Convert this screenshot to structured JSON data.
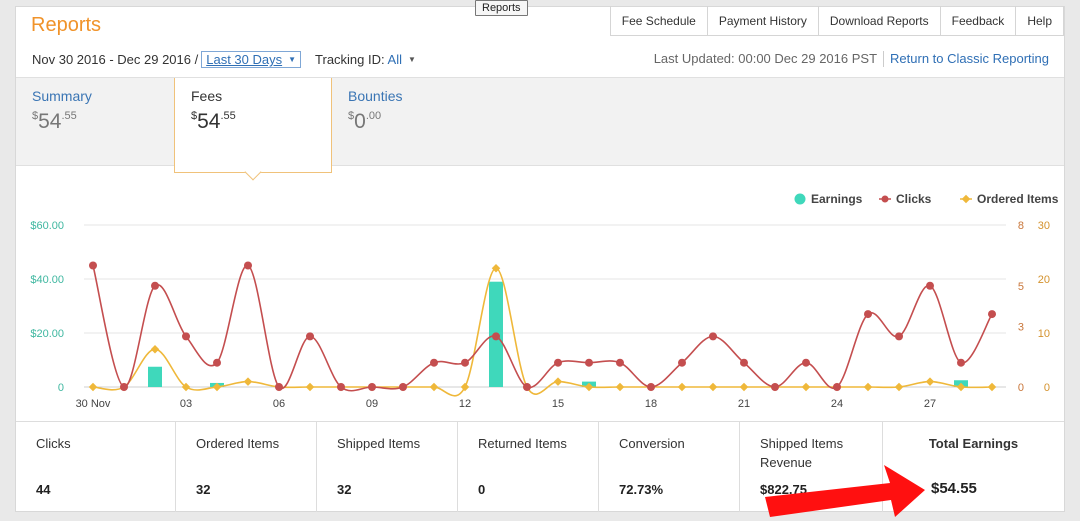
{
  "title": "Reports",
  "tooltip": "Reports",
  "topnav": [
    "Fee Schedule",
    "Payment History",
    "Download Reports",
    "Feedback",
    "Help"
  ],
  "date_range": "Nov 30 2016 - Dec 29 2016 /",
  "range_select": "Last 30 Days",
  "tracking_label": "Tracking ID:",
  "tracking_value": "All",
  "last_updated": "Last Updated: 00:00 Dec 29 2016 PST",
  "classic_link": "Return to Classic Reporting",
  "tabs": [
    {
      "label": "Summary",
      "currency": "$",
      "whole": "54",
      "cents": ".55"
    },
    {
      "label": "Fees",
      "currency": "$",
      "whole": "54",
      "cents": ".55"
    },
    {
      "label": "Bounties",
      "currency": "$",
      "whole": "0",
      "cents": ".00"
    }
  ],
  "stats": [
    {
      "label": "Clicks",
      "value": "44"
    },
    {
      "label": "Ordered Items",
      "value": "32"
    },
    {
      "label": "Shipped Items",
      "value": "32"
    },
    {
      "label": "Returned Items",
      "value": "0"
    },
    {
      "label": "Conversion",
      "value": "72.73%"
    },
    {
      "label": "Shipped Items Revenue",
      "value": "$822.75"
    },
    {
      "label": "Total Earnings",
      "value": "$54.55"
    }
  ],
  "colors": {
    "earnings": "#3fd8bb",
    "clicks": "#c44e4f",
    "ordered": "#efb83a",
    "accent": "#f0932a",
    "link": "#2f6fb5",
    "arrow": "#ff1010"
  },
  "chart_data": {
    "type": "bar+line",
    "legend": [
      "Earnings",
      "Clicks",
      "Ordered Items"
    ],
    "legend_position": "top-right",
    "x_ticks": [
      "30 Nov",
      "03",
      "06",
      "09",
      "12",
      "15",
      "18",
      "21",
      "24",
      "27"
    ],
    "x_tick_days": [
      0,
      3,
      6,
      9,
      12,
      15,
      18,
      21,
      24,
      27
    ],
    "y_left": {
      "ticks": [
        "0",
        "$20.00",
        "$40.00",
        "$60.00"
      ],
      "values": [
        0,
        20,
        40,
        60
      ]
    },
    "y_right1": {
      "ticks": [
        "0",
        "3",
        "5",
        "8"
      ],
      "values": [
        0,
        3,
        5,
        8
      ]
    },
    "y_right2": {
      "ticks": [
        "0",
        "10",
        "20",
        "30"
      ],
      "values": [
        0,
        10,
        20,
        30
      ]
    },
    "earnings": [
      0,
      0,
      7.5,
      0,
      1.5,
      0,
      0,
      0,
      0,
      0,
      0,
      0,
      0,
      39,
      0,
      0,
      2,
      0,
      0,
      0,
      0,
      0,
      0,
      0,
      0,
      0,
      0,
      0,
      2.5,
      0
    ],
    "clicks": [
      6,
      0,
      5,
      2.5,
      1.2,
      6,
      0,
      2.5,
      0,
      0,
      0,
      1.2,
      1.2,
      2.5,
      0,
      1.2,
      1.2,
      1.2,
      0,
      1.2,
      2.5,
      1.2,
      0,
      1.2,
      0,
      3.6,
      2.5,
      5,
      1.2,
      3.6
    ],
    "ordered": [
      0,
      0,
      7,
      0,
      0,
      1,
      0,
      0,
      0,
      0,
      0,
      0,
      0,
      22,
      0,
      1,
      0,
      0,
      0,
      0,
      0,
      0,
      0,
      0,
      0,
      0,
      0,
      1,
      0,
      0
    ],
    "grid": true
  }
}
